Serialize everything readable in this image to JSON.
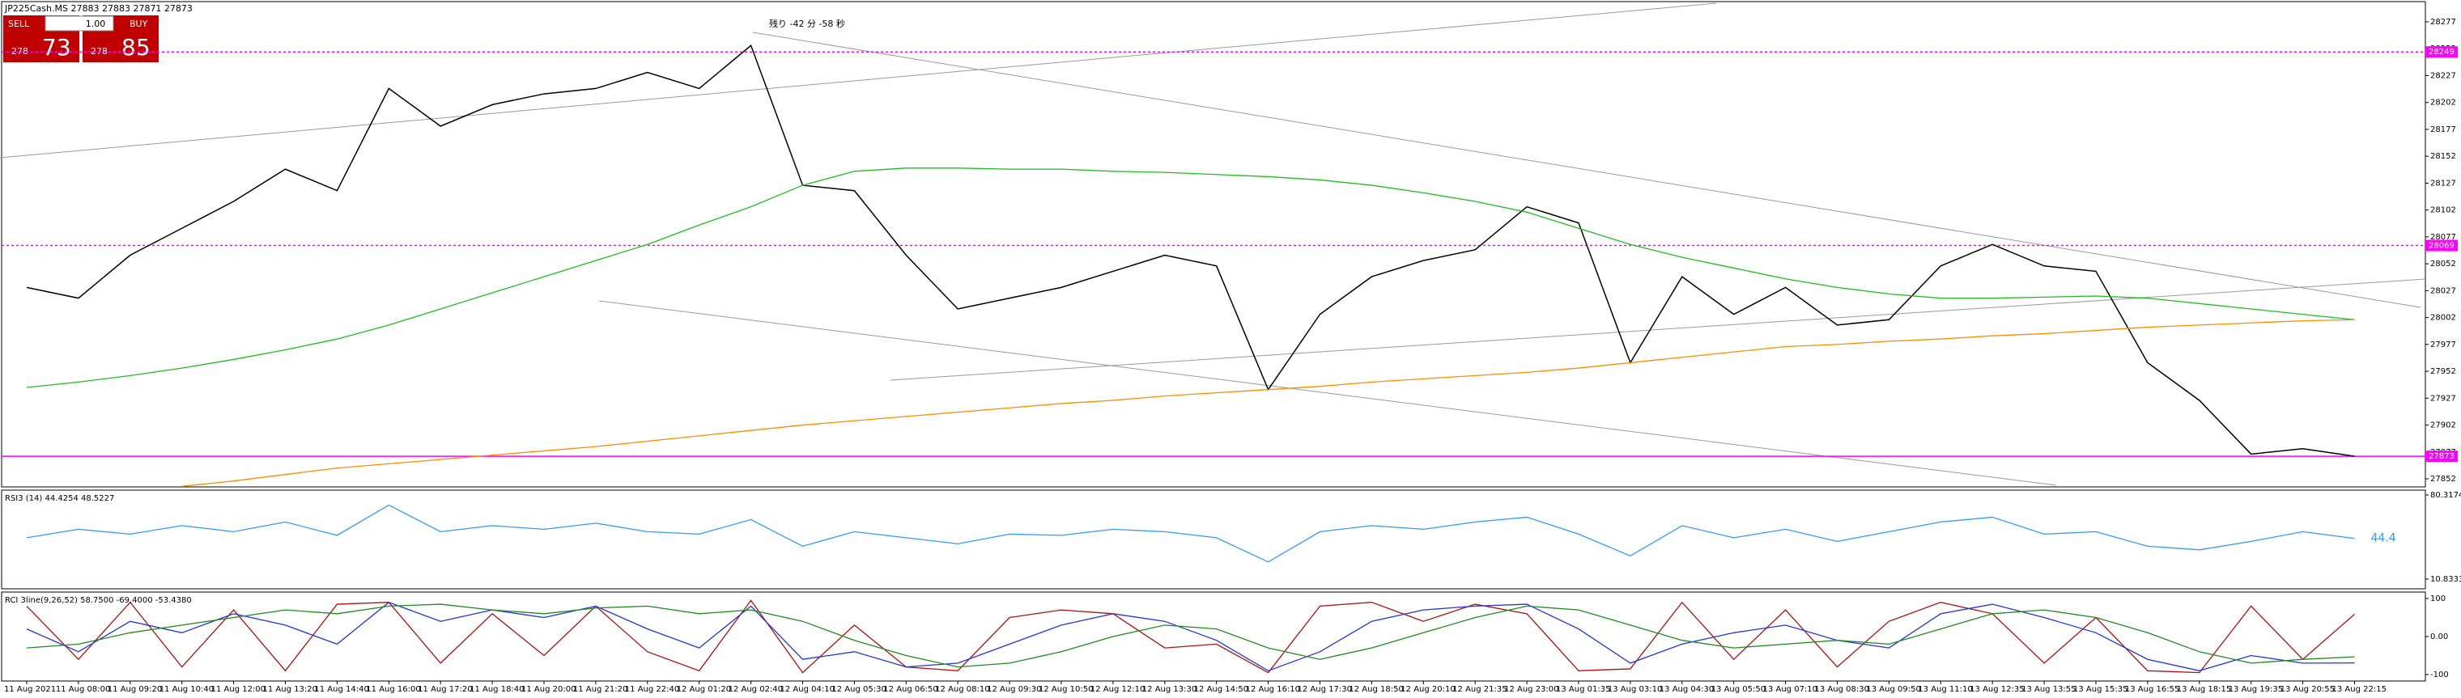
{
  "header": {
    "symbol_line": "JP225Cash.MS  27883 27883 27871 27873",
    "timer": "残り -42 分 -58 秒"
  },
  "trade_panel": {
    "sell_label": "SELL",
    "buy_label": "BUY",
    "lot": "1.00",
    "sell_small": "278",
    "sell_big": "73",
    "buy_small": "278",
    "buy_big": "85"
  },
  "chart_data": [
    {
      "type": "line",
      "categories": [
        "11 Aug 2021",
        "11 Aug 08:00",
        "11 Aug 09:20",
        "11 Aug 10:40",
        "11 Aug 12:00",
        "11 Aug 13:20",
        "11 Aug 14:40",
        "11 Aug 16:00",
        "11 Aug 17:20",
        "11 Aug 18:40",
        "11 Aug 20:00",
        "11 Aug 21:20",
        "11 Aug 22:40",
        "12 Aug 01:20",
        "12 Aug 02:40",
        "12 Aug 04:10",
        "12 Aug 05:30",
        "12 Aug 06:50",
        "12 Aug 08:10",
        "12 Aug 09:30",
        "12 Aug 10:50",
        "12 Aug 12:10",
        "12 Aug 13:30",
        "12 Aug 14:50",
        "12 Aug 16:10",
        "12 Aug 17:30",
        "12 Aug 18:50",
        "12 Aug 20:10",
        "12 Aug 21:35",
        "12 Aug 23:00",
        "13 Aug 01:35",
        "13 Aug 03:10",
        "13 Aug 04:30",
        "13 Aug 05:50",
        "13 Aug 07:10",
        "13 Aug 08:30",
        "13 Aug 09:50",
        "13 Aug 11:10",
        "13 Aug 12:35",
        "13 Aug 13:55",
        "13 Aug 15:35",
        "13 Aug 16:55",
        "13 Aug 18:15",
        "13 Aug 19:35",
        "13 Aug 20:55",
        "13 Aug 22:15"
      ],
      "series": [
        {
          "color": "#000000",
          "values": [
            28030,
            28020,
            28060,
            28085,
            28110,
            28140,
            28120,
            28215,
            28180,
            28200,
            28210,
            28215,
            28230,
            28215,
            28255,
            28125,
            28120,
            28060,
            28010,
            28020,
            28030,
            28045,
            28060,
            28050,
            27935,
            28005,
            28040,
            28055,
            28065,
            28105,
            28090,
            27960,
            28040,
            28005,
            28030,
            27995,
            28000,
            28050,
            28070,
            28050,
            28045,
            27960,
            27925,
            27875,
            27880,
            27873
          ]
        },
        {
          "color": "#22bb22",
          "values": [
            27937,
            27942,
            27948,
            27955,
            27963,
            27972,
            27982,
            27995,
            28010,
            28025,
            28040,
            28055,
            28070,
            28088,
            28105,
            28125,
            28138,
            28141,
            28141,
            28140,
            28140,
            28138,
            28137,
            28135,
            28133,
            28130,
            28125,
            28118,
            28110,
            28100,
            28085,
            28070,
            28058,
            28048,
            28038,
            28030,
            28024,
            28020,
            28020,
            28021,
            28022,
            28020,
            28015,
            28010,
            28005,
            28000
          ]
        },
        {
          "color": "#ff8c00",
          "values": [
            null,
            null,
            null,
            27845,
            27850,
            27856,
            27862,
            27866,
            27870,
            27874,
            27878,
            27882,
            27887,
            27892,
            27897,
            27902,
            27906,
            27910,
            27914,
            27918,
            27922,
            27925,
            27929,
            27932,
            27935,
            27938,
            27942,
            27945,
            27948,
            27951,
            27955,
            27960,
            27965,
            27970,
            27975,
            27977,
            27980,
            27982,
            27985,
            27987,
            27990,
            27993,
            27995,
            27997,
            27999,
            28000
          ]
        }
      ],
      "ylim": [
        27847.5,
        28292.8
      ],
      "yticks": [
        28277,
        28252,
        28227,
        28202,
        28177,
        28152,
        28127,
        28102,
        28077,
        28052,
        28027,
        28002,
        27977,
        27952,
        27927,
        27902,
        27877,
        27852
      ],
      "hlines": [
        {
          "value": 28249,
          "color": "#ff00ff",
          "dashed": true
        },
        {
          "value": 28069,
          "color": "#ff00ff",
          "dashed": true
        },
        {
          "value": 27873,
          "color": "#ff00ff",
          "dashed": false
        }
      ]
    },
    {
      "type": "line",
      "title": "RSI3 (14) 44.4254 48.5227",
      "series": [
        {
          "color": "#3399ff",
          "values": [
            45,
            52,
            48,
            55,
            50,
            58,
            47,
            72,
            50,
            55,
            52,
            57,
            50,
            48,
            60,
            38,
            50,
            45,
            40,
            48,
            47,
            52,
            50,
            45,
            25,
            50,
            55,
            52,
            58,
            62,
            48,
            30,
            55,
            45,
            52,
            42,
            50,
            58,
            62,
            48,
            50,
            38,
            35,
            42,
            50,
            44.4254
          ]
        }
      ],
      "current_label": "44.4",
      "ylim": [
        10.8333,
        80.3174
      ],
      "yticks": [
        80.3174,
        10.8333
      ]
    },
    {
      "type": "line",
      "title": "RCI 3line(9,26,52) 58.7500 -69.4000 -53.4380",
      "series": [
        {
          "color": "#aa1111",
          "values": [
            80,
            -60,
            90,
            -80,
            70,
            -90,
            85,
            90,
            -70,
            60,
            -50,
            80,
            -40,
            -90,
            95,
            -95,
            30,
            -80,
            -90,
            50,
            70,
            60,
            -30,
            -20,
            -95,
            80,
            90,
            40,
            85,
            60,
            -90,
            -85,
            90,
            -60,
            70,
            -80,
            40,
            90,
            60,
            -70,
            50,
            -90,
            -95,
            80,
            -60,
            58.75
          ]
        },
        {
          "color": "#2233dd",
          "values": [
            20,
            -40,
            40,
            10,
            60,
            30,
            -20,
            90,
            40,
            70,
            50,
            80,
            20,
            -30,
            80,
            -60,
            -40,
            -80,
            -70,
            -20,
            30,
            60,
            40,
            -10,
            -90,
            -40,
            40,
            70,
            80,
            85,
            20,
            -70,
            -20,
            10,
            30,
            -10,
            -30,
            60,
            85,
            50,
            10,
            -60,
            -90,
            -50,
            -70,
            -69.4
          ]
        },
        {
          "color": "#228822",
          "values": [
            -30,
            -20,
            10,
            30,
            50,
            70,
            60,
            80,
            85,
            70,
            60,
            75,
            80,
            60,
            70,
            40,
            -10,
            -50,
            -80,
            -70,
            -40,
            0,
            30,
            20,
            -30,
            -60,
            -30,
            10,
            50,
            80,
            70,
            30,
            -10,
            -30,
            -20,
            -10,
            -20,
            20,
            60,
            70,
            50,
            10,
            -40,
            -70,
            -60,
            -53.438
          ]
        }
      ],
      "ylim": [
        -100,
        100
      ],
      "yticks": [
        100,
        {
          "value": 0,
          "label": "0.00"
        },
        -100
      ]
    }
  ]
}
